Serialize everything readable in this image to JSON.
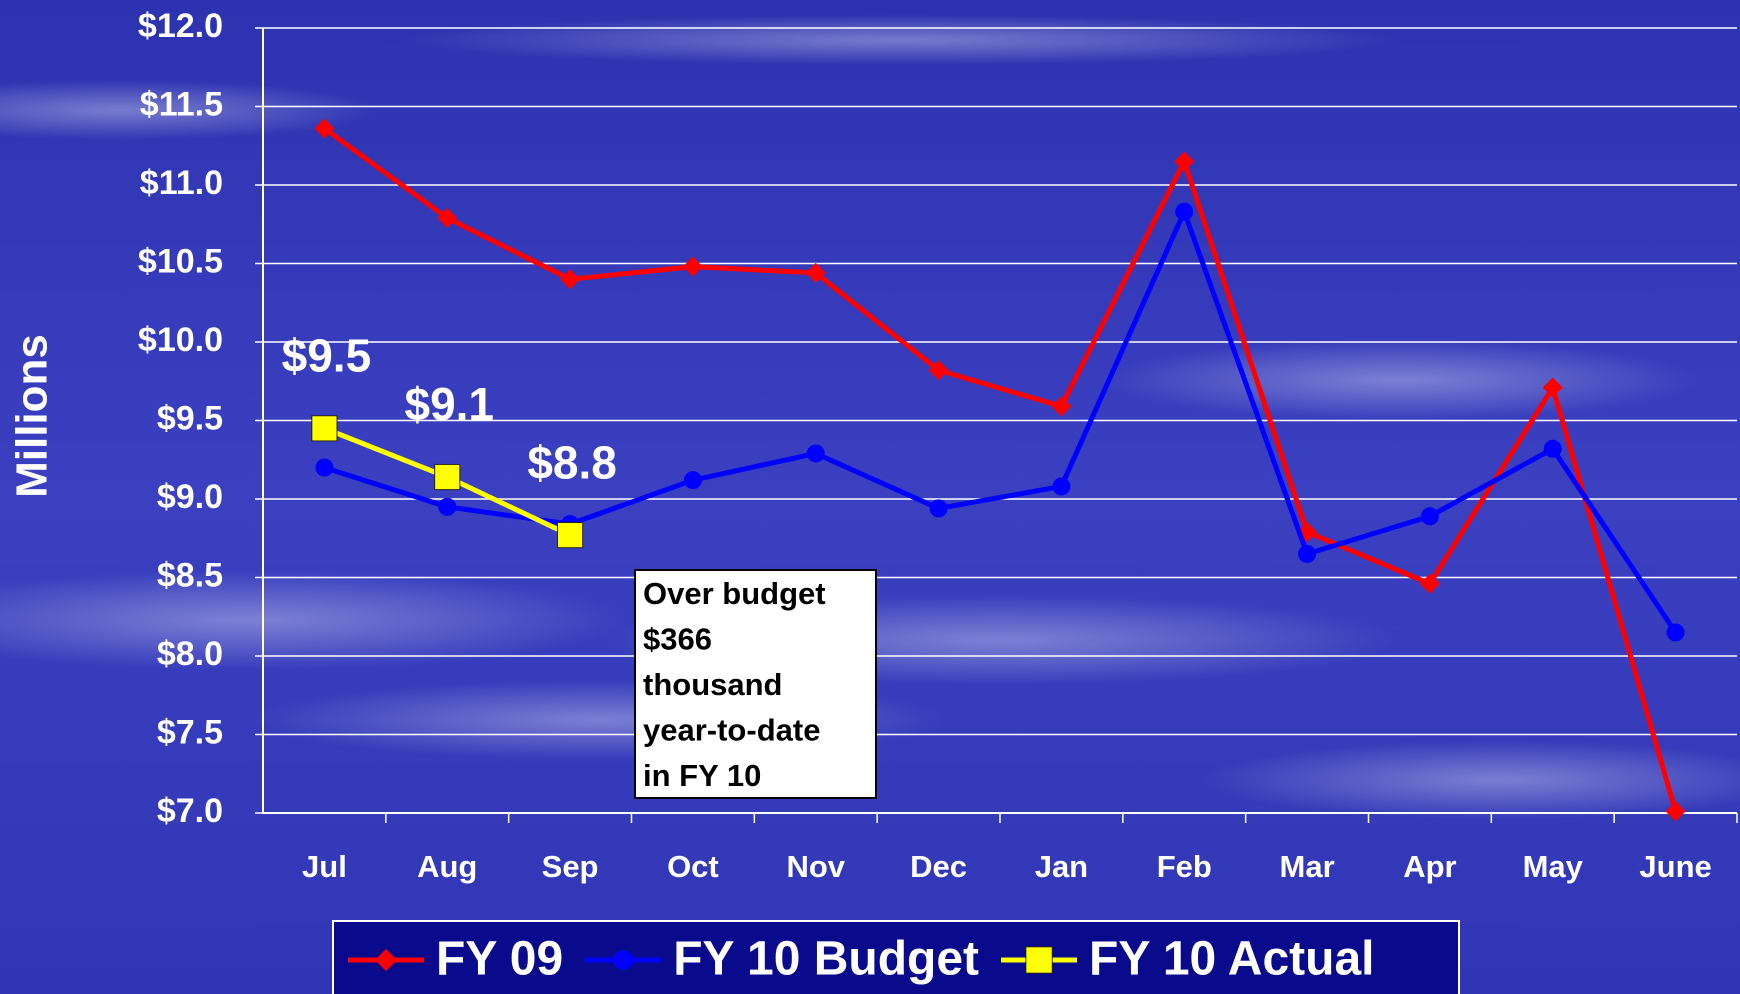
{
  "chart_data": {
    "type": "line",
    "ylabel": "Millions",
    "categories": [
      "Jul",
      "Aug",
      "Sep",
      "Oct",
      "Nov",
      "Dec",
      "Jan",
      "Feb",
      "Mar",
      "Apr",
      "May",
      "June"
    ],
    "series": [
      {
        "name": "FY 09",
        "color": "#ff0000",
        "marker": "diamond",
        "values": [
          11.36,
          10.79,
          10.4,
          10.48,
          10.44,
          9.82,
          9.59,
          11.15,
          8.79,
          8.46,
          9.71,
          7.01
        ]
      },
      {
        "name": "FY 10 Budget",
        "color": "#0000ff",
        "marker": "circle",
        "values": [
          9.2,
          8.95,
          8.84,
          9.12,
          9.29,
          8.94,
          9.08,
          10.83,
          8.65,
          8.89,
          9.32,
          8.15
        ]
      },
      {
        "name": "FY 10 Actual",
        "color": "#ffff00",
        "marker": "square",
        "values": [
          9.45,
          9.14,
          8.77,
          null,
          null,
          null,
          null,
          null,
          null,
          null,
          null,
          null
        ],
        "value_labels": [
          "$9.5",
          "$9.1",
          "$8.8",
          null,
          null,
          null,
          null,
          null,
          null,
          null,
          null,
          null
        ]
      }
    ],
    "ylim": [
      7.0,
      12.0
    ],
    "yticks": [
      {
        "value": 7.0,
        "label": "$7.0"
      },
      {
        "value": 7.5,
        "label": "$7.5"
      },
      {
        "value": 8.0,
        "label": "$8.0"
      },
      {
        "value": 8.5,
        "label": "$8.5"
      },
      {
        "value": 9.0,
        "label": "$9.0"
      },
      {
        "value": 9.5,
        "label": "$9.5"
      },
      {
        "value": 10.0,
        "label": "$10.0"
      },
      {
        "value": 10.5,
        "label": "$10.5"
      },
      {
        "value": 11.0,
        "label": "$11.0"
      },
      {
        "value": 11.5,
        "label": "$11.5"
      },
      {
        "value": 12.0,
        "label": "$12.0"
      }
    ],
    "grid": true,
    "legend": "bottom",
    "annotation": [
      "Over budget",
      "$366",
      "thousand",
      "year-to-date",
      "in FY 10"
    ]
  }
}
